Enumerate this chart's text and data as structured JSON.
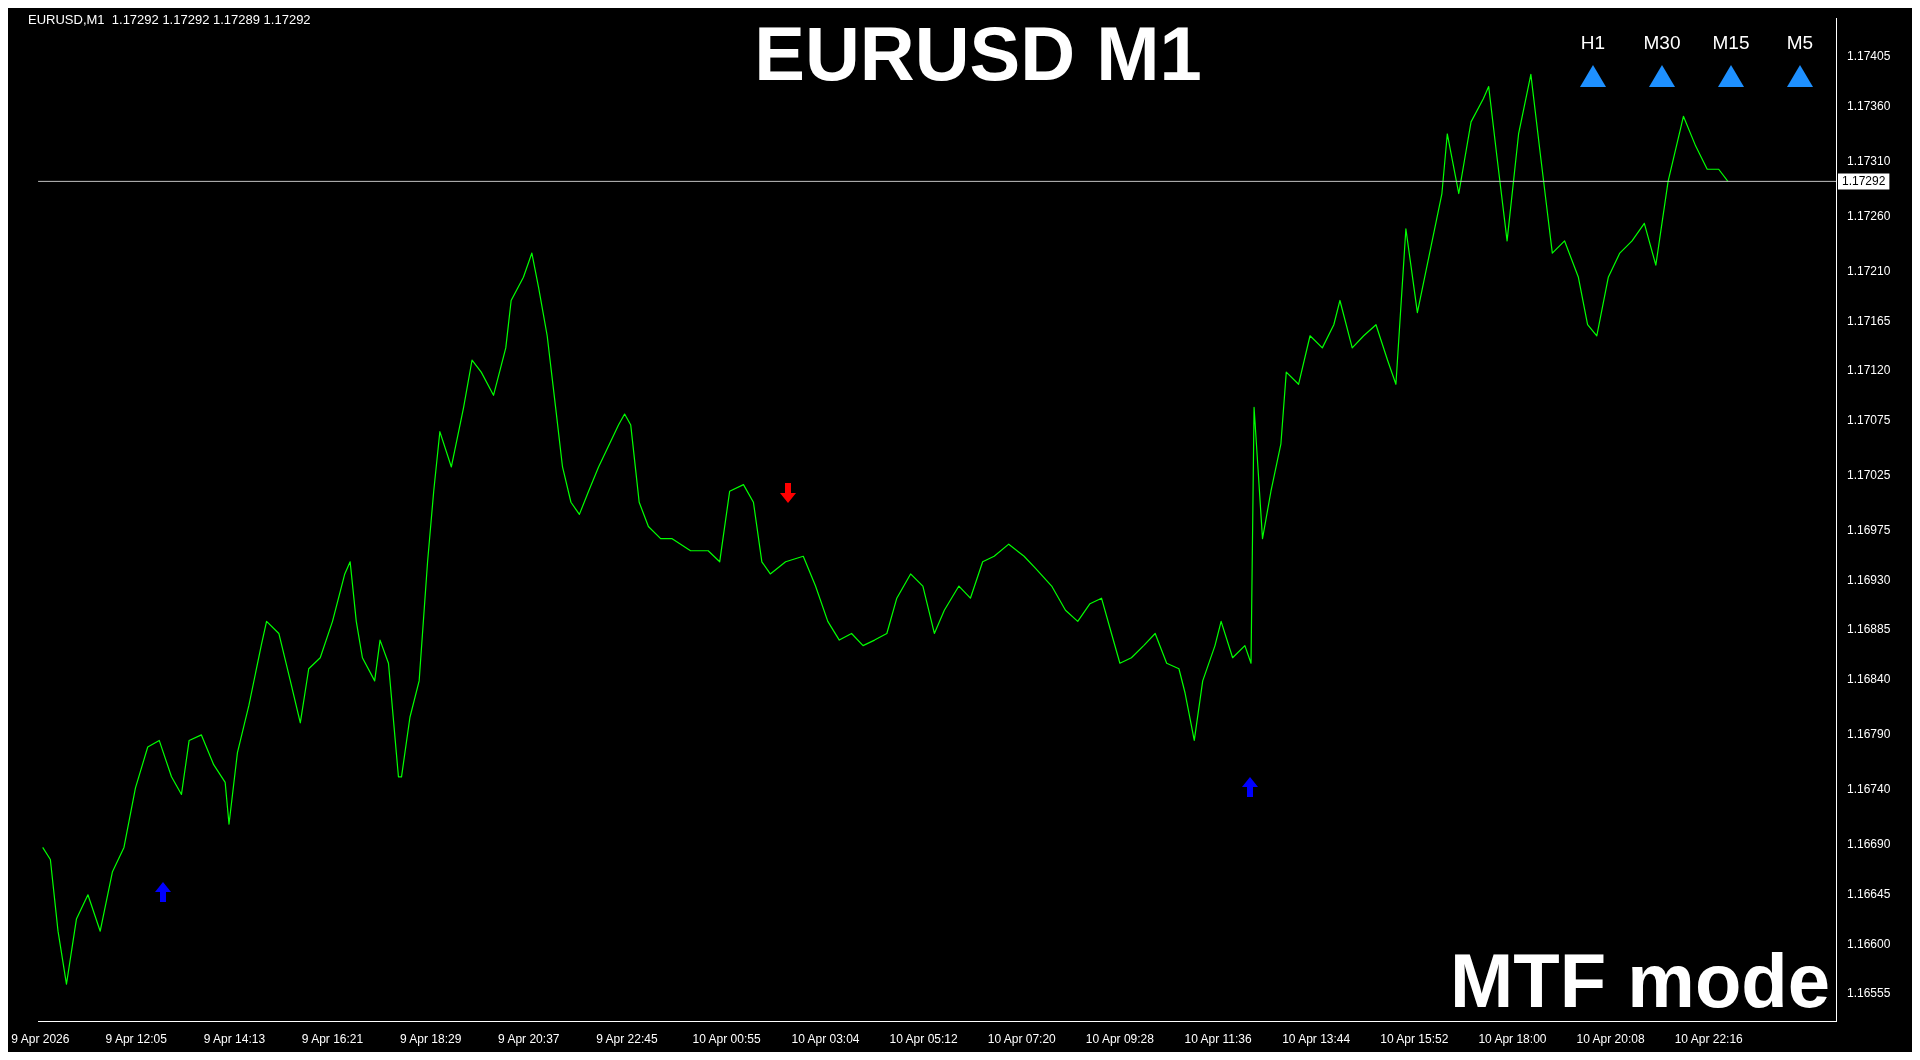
{
  "chart_data": {
    "type": "line",
    "title": "EURUSD M1",
    "annotations": [
      "EURUSD,M1  1.17292 1.17292 1.17289 1.17292",
      "MTF mode",
      "H1",
      "M30",
      "M15",
      "M5"
    ],
    "series": [
      {
        "color": "#00ff00",
        "x": [
          "2026-04-09T10:03",
          "2026-04-09T10:13",
          "2026-04-09T10:23",
          "2026-04-09T10:34",
          "2026-04-09T10:47",
          "2026-04-09T11:02",
          "2026-04-09T11:18",
          "2026-04-09T11:34",
          "2026-04-09T11:49",
          "2026-04-09T12:04",
          "2026-04-09T12:20",
          "2026-04-09T12:35",
          "2026-04-09T12:51",
          "2026-04-09T13:04",
          "2026-04-09T13:14",
          "2026-04-09T13:30",
          "2026-04-09T13:46",
          "2026-04-09T14:01",
          "2026-04-09T14:06",
          "2026-04-09T14:17",
          "2026-04-09T14:32",
          "2026-04-09T14:48",
          "2026-04-09T14:55",
          "2026-04-09T15:11",
          "2026-04-09T15:26",
          "2026-04-09T15:39",
          "2026-04-09T15:50",
          "2026-04-09T16:05",
          "2026-04-09T16:21",
          "2026-04-09T16:37",
          "2026-04-09T16:44",
          "2026-04-09T16:52",
          "2026-04-09T17:00",
          "2026-04-09T17:16",
          "2026-04-09T17:23",
          "2026-04-09T17:34",
          "2026-04-09T17:47",
          "2026-04-09T17:51",
          "2026-04-09T18:02",
          "2026-04-09T18:14",
          "2026-04-09T18:25",
          "2026-04-09T18:33",
          "2026-04-09T18:41",
          "2026-04-09T18:56",
          "2026-04-09T19:12",
          "2026-04-09T19:23",
          "2026-04-09T19:35",
          "2026-04-09T19:51",
          "2026-04-09T20:07",
          "2026-04-09T20:14",
          "2026-04-09T20:30",
          "2026-04-09T20:41",
          "2026-04-09T20:50",
          "2026-04-09T21:01",
          "2026-04-09T21:12",
          "2026-04-09T21:21",
          "2026-04-09T21:32",
          "2026-04-09T21:43",
          "2026-04-09T21:55",
          "2026-04-09T22:08",
          "2026-04-09T22:19",
          "2026-04-09T22:34",
          "2026-04-09T22:42",
          "2026-04-09T22:50",
          "2026-04-09T23:01",
          "2026-04-09T23:13",
          "2026-04-09T23:29",
          "2026-04-09T23:44",
          "2026-04-10T00:08",
          "2026-04-10T00:31",
          "2026-04-10T00:46",
          "2026-04-10T00:59",
          "2026-04-10T01:17",
          "2026-04-10T01:30",
          "2026-04-10T01:41",
          "2026-04-10T01:52",
          "2026-04-10T02:12",
          "2026-04-10T02:35",
          "2026-04-10T02:51",
          "2026-04-10T03:07",
          "2026-04-10T03:22",
          "2026-04-10T03:38",
          "2026-04-10T03:53",
          "2026-04-10T04:08",
          "2026-04-10T04:24",
          "2026-04-10T04:37",
          "2026-04-10T04:55",
          "2026-04-10T05:11",
          "2026-04-10T05:26",
          "2026-04-10T05:39",
          "2026-04-10T05:58",
          "2026-04-10T06:13",
          "2026-04-10T06:29",
          "2026-04-10T06:44",
          "2026-04-10T07:03",
          "2026-04-10T07:23",
          "2026-04-10T07:38",
          "2026-04-10T07:59",
          "2026-04-10T08:17",
          "2026-04-10T08:33",
          "2026-04-10T08:49",
          "2026-04-10T09:04",
          "2026-04-10T09:17",
          "2026-04-10T09:28",
          "2026-04-10T09:43",
          "2026-04-10T09:59",
          "2026-04-10T10:14",
          "2026-04-10T10:29",
          "2026-04-10T10:45",
          "2026-04-10T10:53",
          "2026-04-10T11:05",
          "2026-04-10T11:16",
          "2026-04-10T11:32",
          "2026-04-10T11:40",
          "2026-04-10T11:55",
          "2026-04-10T12:11",
          "2026-04-10T12:19",
          "2026-04-10T12:23",
          "2026-04-10T12:34",
          "2026-04-10T12:45",
          "2026-04-10T12:58",
          "2026-04-10T13:05",
          "2026-04-10T13:21",
          "2026-04-10T13:36",
          "2026-04-10T13:52",
          "2026-04-10T14:07",
          "2026-04-10T14:15",
          "2026-04-10T14:31",
          "2026-04-10T14:46",
          "2026-04-10T15:02",
          "2026-04-10T15:17",
          "2026-04-10T15:28",
          "2026-04-10T15:41",
          "2026-04-10T15:56",
          "2026-04-10T16:12",
          "2026-04-10T16:28",
          "2026-04-10T16:35",
          "2026-04-10T16:50",
          "2026-04-10T17:06",
          "2026-04-10T17:22",
          "2026-04-10T17:29",
          "2026-04-10T17:40",
          "2026-04-10T17:53",
          "2026-04-10T18:08",
          "2026-04-10T18:24",
          "2026-04-10T18:37",
          "2026-04-10T18:52",
          "2026-04-10T19:08",
          "2026-04-10T19:26",
          "2026-04-10T19:38",
          "2026-04-10T19:50",
          "2026-04-10T20:05",
          "2026-04-10T20:20",
          "2026-04-10T20:36",
          "2026-04-10T20:52",
          "2026-04-10T21:07",
          "2026-04-10T21:23",
          "2026-04-10T21:43",
          "2026-04-10T21:59",
          "2026-04-10T22:14",
          "2026-04-10T22:29",
          "2026-04-10T22:41"
        ],
        "values": [
          1.16688,
          1.16677,
          1.16612,
          1.16564,
          1.16623,
          1.16645,
          1.16612,
          1.16666,
          1.16688,
          1.16742,
          1.16779,
          1.16785,
          1.16752,
          1.16736,
          1.16785,
          1.1679,
          1.16763,
          1.16747,
          1.16709,
          1.16774,
          1.16817,
          1.16871,
          1.16893,
          1.16882,
          1.16839,
          1.16801,
          1.1685,
          1.1686,
          1.16893,
          1.16936,
          1.16947,
          1.16893,
          1.1686,
          1.16839,
          1.16876,
          1.16855,
          1.16752,
          1.16752,
          1.16806,
          1.16839,
          1.16947,
          1.17011,
          1.17065,
          1.17033,
          1.17087,
          1.1713,
          1.17119,
          1.17098,
          1.17141,
          1.17184,
          1.17205,
          1.17227,
          1.17195,
          1.17152,
          1.17087,
          1.17033,
          1.17001,
          1.1699,
          1.17011,
          1.17033,
          1.17049,
          1.17071,
          1.17081,
          1.17071,
          1.17001,
          1.16979,
          1.16968,
          1.16968,
          1.16957,
          1.16957,
          1.16947,
          1.17011,
          1.17017,
          1.17001,
          1.16947,
          1.16936,
          1.16947,
          1.16952,
          1.16925,
          1.16893,
          1.16876,
          1.16882,
          1.16871,
          1.16876,
          1.16882,
          1.16914,
          1.16936,
          1.16925,
          1.16882,
          1.16903,
          1.16925,
          1.16914,
          1.16947,
          1.16952,
          1.16963,
          1.16952,
          1.16941,
          1.16925,
          1.16903,
          1.16893,
          1.16909,
          1.16914,
          1.16882,
          1.16855,
          1.1686,
          1.16871,
          1.16882,
          1.16855,
          1.1685,
          1.16828,
          1.16785,
          1.16839,
          1.16871,
          1.16893,
          1.1686,
          1.16871,
          1.16855,
          1.17087,
          1.16968,
          1.17011,
          1.17054,
          1.17119,
          1.17108,
          1.17152,
          1.17141,
          1.17162,
          1.17184,
          1.17141,
          1.17152,
          1.17162,
          1.1713,
          1.17108,
          1.17249,
          1.17173,
          1.17227,
          1.17281,
          1.17335,
          1.17281,
          1.17346,
          1.17367,
          1.17378,
          1.17313,
          1.17238,
          1.17335,
          1.17389,
          1.17313,
          1.17227,
          1.17238,
          1.17205,
          1.17162,
          1.17152,
          1.17205,
          1.17227,
          1.17238,
          1.17254,
          1.17216,
          1.17292,
          1.17351,
          1.17324,
          1.17303,
          1.17303,
          1.17292
        ]
      }
    ],
    "xlim": [
      "2026-04-09T09:57",
      "2026-04-11T01:02"
    ],
    "xticks": [
      {
        "value": "2026-04-09T10:00",
        "label": "9 Apr 2026"
      },
      {
        "value": "2026-04-09T12:05",
        "label": "9 Apr 12:05"
      },
      {
        "value": "2026-04-09T14:13",
        "label": "9 Apr 14:13"
      },
      {
        "value": "2026-04-09T16:21",
        "label": "9 Apr 16:21"
      },
      {
        "value": "2026-04-09T18:29",
        "label": "9 Apr 18:29"
      },
      {
        "value": "2026-04-09T20:37",
        "label": "9 Apr 20:37"
      },
      {
        "value": "2026-04-09T22:45",
        "label": "9 Apr 22:45"
      },
      {
        "value": "2026-04-10T00:55",
        "label": "10 Apr 00:55"
      },
      {
        "value": "2026-04-10T03:04",
        "label": "10 Apr 03:04"
      },
      {
        "value": "2026-04-10T05:12",
        "label": "10 Apr 05:12"
      },
      {
        "value": "2026-04-10T07:20",
        "label": "10 Apr 07:20"
      },
      {
        "value": "2026-04-10T09:28",
        "label": "10 Apr 09:28"
      },
      {
        "value": "2026-04-10T11:36",
        "label": "10 Apr 11:36"
      },
      {
        "value": "2026-04-10T13:44",
        "label": "10 Apr 13:44"
      },
      {
        "value": "2026-04-10T15:52",
        "label": "10 Apr 15:52"
      },
      {
        "value": "2026-04-10T18:00",
        "label": "10 Apr 18:00"
      },
      {
        "value": "2026-04-10T20:08",
        "label": "10 Apr 20:08"
      },
      {
        "value": "2026-04-10T22:16",
        "label": "10 Apr 22:16"
      }
    ],
    "ylim": [
      1.1653,
      1.1744
    ],
    "yticks": [
      1.16555,
      {
        "value": 1.166,
        "label": "1.16600"
      },
      1.16645,
      {
        "value": 1.1669,
        "label": "1.16690"
      },
      {
        "value": 1.1674,
        "label": "1.16740"
      },
      {
        "value": 1.1679,
        "label": "1.16790"
      },
      {
        "value": 1.1684,
        "label": "1.16840"
      },
      1.16885,
      {
        "value": 1.1693,
        "label": "1.16930"
      },
      1.16975,
      1.17025,
      1.17075,
      {
        "value": 1.1712,
        "label": "1.17120"
      },
      1.17165,
      {
        "value": 1.1721,
        "label": "1.17210"
      },
      {
        "value": 1.1726,
        "label": "1.17260"
      },
      {
        "value": 1.1731,
        "label": "1.17310"
      },
      {
        "value": 1.1736,
        "label": "1.17360"
      },
      1.17405
    ],
    "ref_lines": [
      {
        "axis": "y",
        "value": 1.17292,
        "label": "1.17292",
        "color": "#c0c0c0"
      }
    ],
    "marker": "none",
    "line_style": "solid",
    "legend": false,
    "grid": false
  }
}
